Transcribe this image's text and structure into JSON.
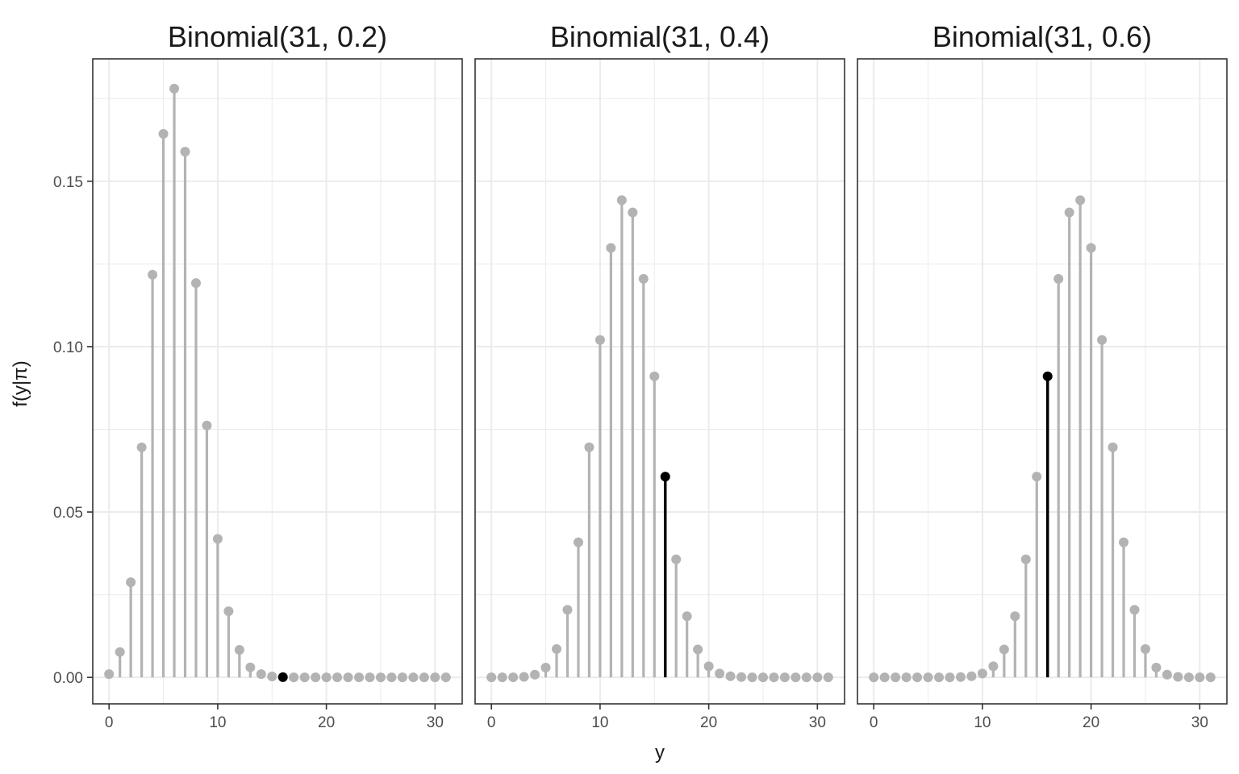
{
  "chart_data": {
    "type": "lollipop",
    "ylabel": "f(y|π)",
    "xlabel": "y",
    "x_ticks": [
      0,
      10,
      20,
      30
    ],
    "y_ticks": [
      "0.00",
      "0.05",
      "0.10",
      "0.15"
    ],
    "xlim": [
      -1.5,
      32.5
    ],
    "ylim": [
      -0.008,
      0.187
    ],
    "grid": true,
    "colors": {
      "base": "#b3b3b3",
      "highlight": "#000000",
      "grid": "#ebebeb",
      "border": "#333333"
    },
    "highlight_y": 16,
    "panels": [
      {
        "title": "Binomial(31, 0.2)",
        "n": 31,
        "p": 0.2
      },
      {
        "title": "Binomial(31, 0.4)",
        "n": 31,
        "p": 0.4
      },
      {
        "title": "Binomial(31, 0.6)",
        "n": 31,
        "p": 0.6
      }
    ]
  }
}
